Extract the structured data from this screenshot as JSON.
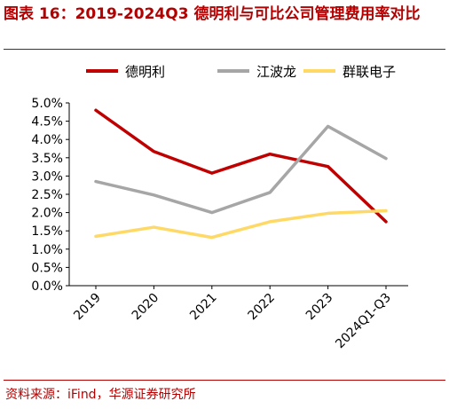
{
  "figure": {
    "title": "图表 16：2019-2024Q3 德明利与可比公司管理费用率对比",
    "source": "资料来源：iFind，华源证券研究所"
  },
  "chart_data": {
    "type": "line",
    "categories": [
      "2019",
      "2020",
      "2021",
      "2022",
      "2023",
      "2024Q1-Q3"
    ],
    "ylim": [
      0,
      5.0
    ],
    "yticks": [
      "0.0%",
      "0.5%",
      "1.0%",
      "1.5%",
      "2.0%",
      "2.5%",
      "3.0%",
      "3.5%",
      "4.0%",
      "4.5%",
      "5.0%"
    ],
    "xlabel": "",
    "ylabel": "",
    "legend_position": "top",
    "grid": false,
    "series": [
      {
        "name": "德明利",
        "color": "#c00000",
        "values": [
          4.8,
          3.67,
          3.08,
          3.6,
          3.26,
          1.75
        ]
      },
      {
        "name": "江波龙",
        "color": "#a6a6a6",
        "values": [
          2.85,
          2.48,
          2.0,
          2.55,
          4.36,
          3.48
        ]
      },
      {
        "name": "群联电子",
        "color": "#ffd966",
        "values": [
          1.35,
          1.6,
          1.32,
          1.75,
          1.98,
          2.05
        ]
      }
    ]
  }
}
